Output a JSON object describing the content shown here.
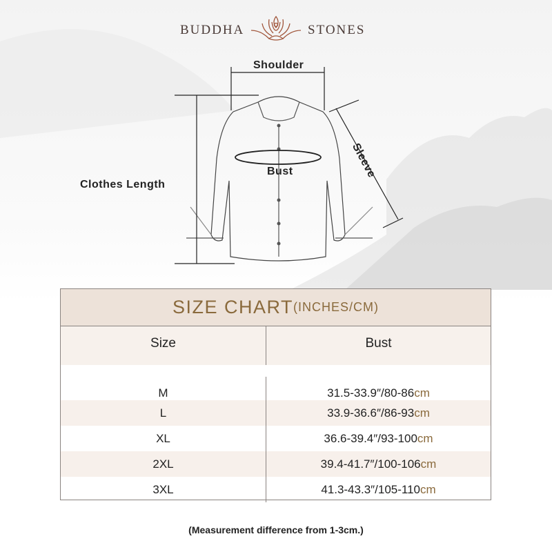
{
  "brand": {
    "left": "BUDDHA",
    "right": "STONES",
    "logo_icon": "lotus-meditation-icon",
    "logo_color": "#a0553a"
  },
  "diagram": {
    "labels": {
      "shoulder": "Shoulder",
      "sleeve": "Sleeve",
      "bust": "Bust",
      "clothes_length": "Clothes Length"
    }
  },
  "size_chart": {
    "title_main": "SIZE CHART",
    "title_units": "(INCHES/CM)",
    "columns": [
      "Size",
      "Bust"
    ],
    "rows": [
      {
        "size": "M",
        "bust": "31.5-33.9″/80-86",
        "unit": "cm"
      },
      {
        "size": "L",
        "bust": "33.9-36.6″/86-93",
        "unit": "cm"
      },
      {
        "size": "XL",
        "bust": "36.6-39.4″/93-100",
        "unit": "cm"
      },
      {
        "size": "2XL",
        "bust": "39.4-41.7″/100-106",
        "unit": "cm"
      },
      {
        "size": "3XL",
        "bust": "41.3-43.3″/105-110",
        "unit": "cm"
      }
    ],
    "colors": {
      "title_bg": "#ede2d9",
      "title_text": "#8a6a3c",
      "tint_row": "#f7f0eb"
    }
  },
  "note": "(Measurement difference from 1-3cm.)"
}
